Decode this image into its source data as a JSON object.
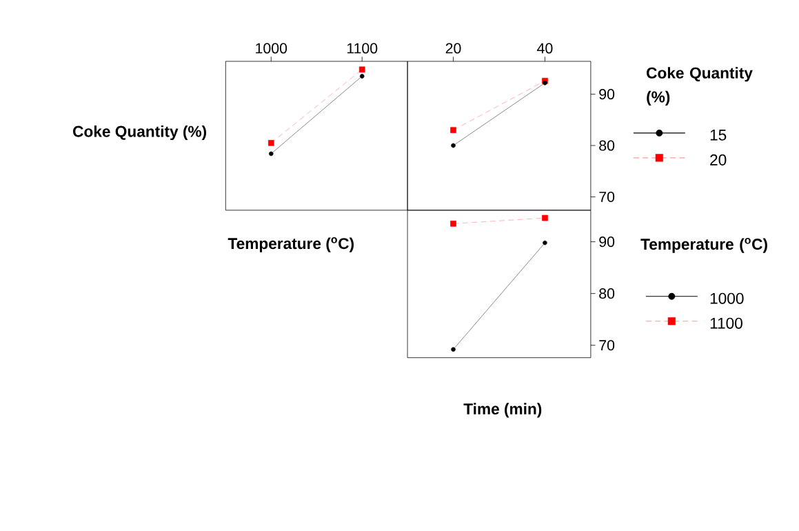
{
  "chart_data": [
    {
      "type": "line",
      "xlabel": "Temperature ($^{o}$C)",
      "ylabel": "Coke Quantity (%)",
      "x": [
        1000,
        1100
      ],
      "xlim": [
        950,
        1150
      ],
      "xticks": [
        1000,
        1100
      ],
      "ylim": [
        67.4,
        96.4
      ],
      "tick_labels": "x",
      "series": [
        {
          "color": "#000000",
          "values": [
            78.4,
            93.5
          ],
          "marker": "circle",
          "line_style": "solid"
        },
        {
          "color": "#ff0000",
          "values": [
            80.5,
            94.8
          ],
          "marker": "square",
          "line_style": "dashed"
        }
      ]
    },
    {
      "type": "line",
      "legend_title": "Coke Quantity (%)",
      "legend": "right",
      "x": [
        20,
        40
      ],
      "xlim": [
        10,
        50
      ],
      "xticks": [
        20,
        40
      ],
      "ylim": [
        67.4,
        96.4
      ],
      "yticks": [
        70,
        80,
        90
      ],
      "series": [
        {
          "name": "15",
          "color": "#000000",
          "values": [
            80.0,
            92.2
          ],
          "marker": "circle",
          "line_style": "solid"
        },
        {
          "name": "20",
          "color": "#ff0000",
          "values": [
            83.0,
            92.6
          ],
          "marker": "square",
          "line_style": "dashed"
        }
      ]
    },
    {
      "type": "line",
      "xlabel": "Time (min)",
      "legend_title": "Temperature ($^{o}$C)",
      "legend": "right",
      "x": [
        20,
        40
      ],
      "xlim": [
        10,
        50
      ],
      "ylim": [
        67.6,
        96.1
      ],
      "yticks": [
        70,
        80,
        90
      ],
      "tick_labels": "y",
      "series": [
        {
          "name": "1000",
          "color": "#000000",
          "values": [
            69.2,
            89.8
          ],
          "marker": "circle",
          "line_style": "solid"
        },
        {
          "name": "1100",
          "color": "#ff0000",
          "values": [
            93.5,
            94.6
          ],
          "marker": "square",
          "line_style": "dashed"
        }
      ]
    }
  ]
}
